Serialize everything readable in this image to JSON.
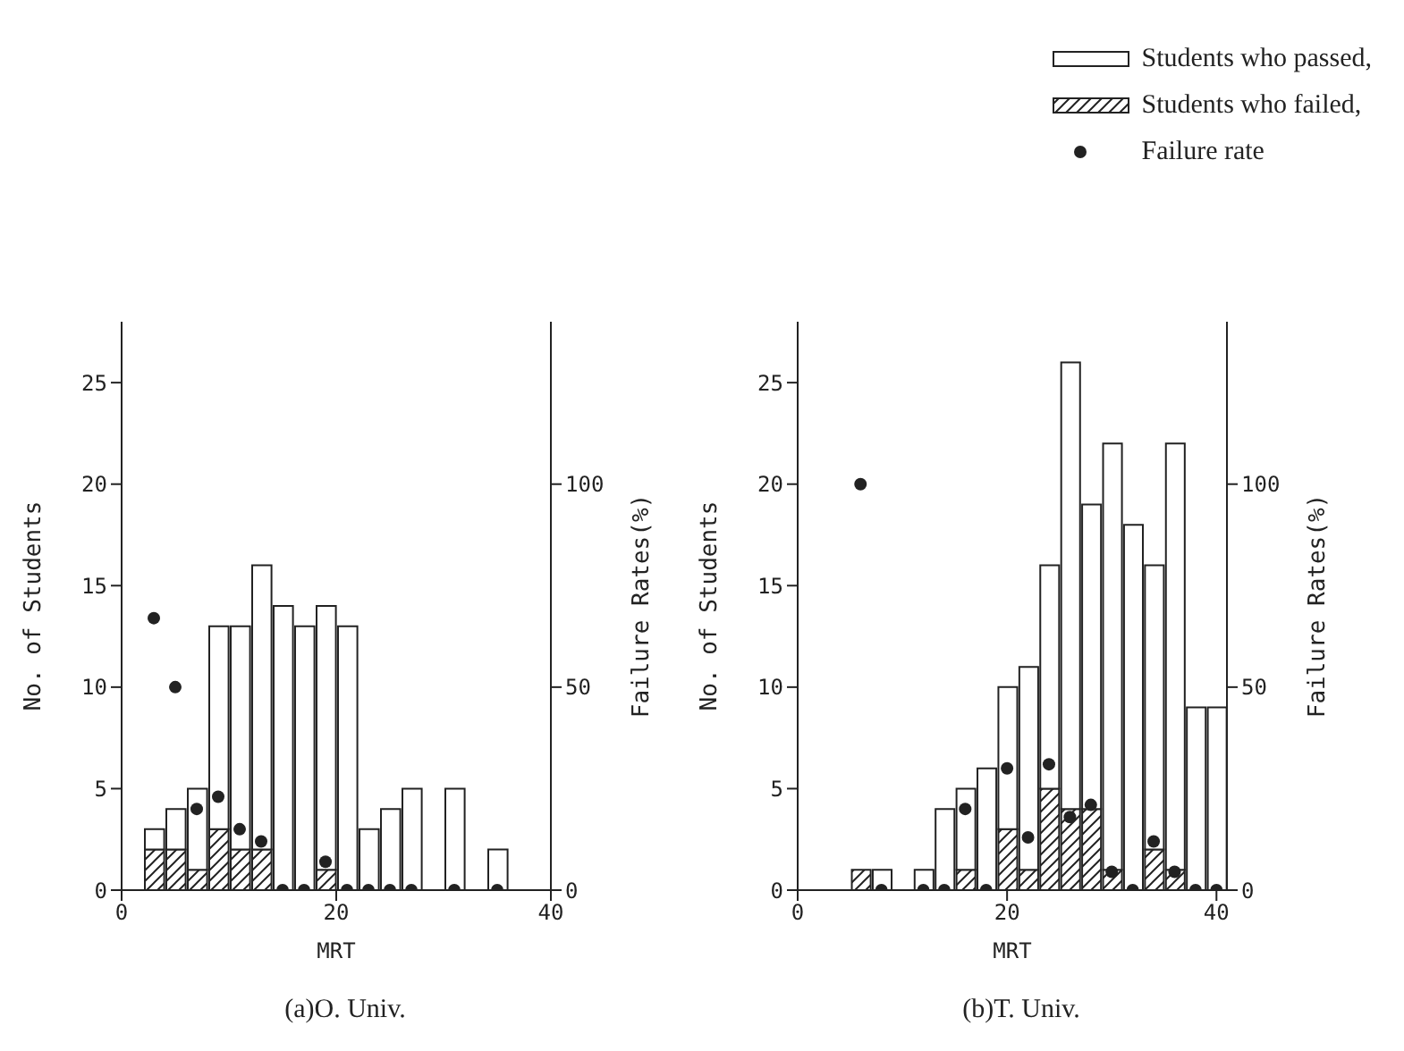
{
  "chart_data": [
    {
      "type": "bar",
      "title": "(a)O. Univ.",
      "xlabel": "MRT",
      "ylabel": "No. of Students",
      "y2label": "Failure Rates(%)",
      "stacked": true,
      "legend": "top right",
      "x": [
        3,
        5,
        7,
        9,
        11,
        13,
        15,
        17,
        19,
        21,
        23,
        25,
        27,
        29,
        31,
        33,
        35
      ],
      "series": [
        {
          "name": "Students who failed,",
          "color": "#222222",
          "values": [
            2,
            2,
            1,
            3,
            2,
            2,
            0,
            0,
            1,
            0,
            0,
            0,
            0,
            0,
            0,
            0,
            0
          ]
        },
        {
          "name": "Students who passed,",
          "color": "#ffffff",
          "values": [
            1,
            2,
            4,
            10,
            11,
            14,
            14,
            13,
            13,
            13,
            3,
            4,
            5,
            0,
            5,
            0,
            2
          ]
        },
        {
          "name": "Failure rate",
          "type": "scatter",
          "axis": "y2",
          "color": "#222222",
          "x": [
            3,
            5,
            7,
            9,
            11,
            13,
            15,
            17,
            19,
            21,
            23,
            25,
            27,
            31,
            35
          ],
          "values": [
            67,
            50,
            20,
            23,
            15,
            12,
            0,
            0,
            7,
            0,
            0,
            0,
            0,
            0,
            0
          ]
        }
      ],
      "xlim": [
        0,
        40
      ],
      "xticks": [
        0,
        20,
        40
      ],
      "ylim": [
        0,
        28
      ],
      "yticks": [
        0,
        5,
        10,
        15,
        20,
        25
      ],
      "y2lim": [
        0,
        140
      ],
      "y2ticks": [
        0,
        50,
        100
      ]
    },
    {
      "type": "bar",
      "title": "(b)T. Univ.",
      "xlabel": "MRT",
      "ylabel": "No. of Students",
      "y2label": "Failure Rates(%)",
      "stacked": true,
      "legend": "top right",
      "x": [
        6,
        8,
        10,
        12,
        14,
        16,
        18,
        20,
        22,
        24,
        26,
        28,
        30,
        32,
        34,
        36,
        38,
        40
      ],
      "series": [
        {
          "name": "Students who failed,",
          "color": "#222222",
          "values": [
            1,
            0,
            0,
            0,
            0,
            1,
            0,
            3,
            1,
            5,
            4,
            4,
            1,
            0,
            2,
            1,
            0,
            0
          ]
        },
        {
          "name": "Students who passed,",
          "color": "#ffffff",
          "values": [
            0,
            1,
            0,
            1,
            4,
            4,
            6,
            7,
            10,
            11,
            22,
            15,
            21,
            18,
            14,
            21,
            9,
            9
          ]
        },
        {
          "name": "Failure rate",
          "type": "scatter",
          "axis": "y2",
          "color": "#222222",
          "x": [
            6,
            8,
            12,
            14,
            16,
            18,
            20,
            22,
            24,
            26,
            28,
            30,
            32,
            34,
            36,
            38,
            40
          ],
          "values": [
            100,
            0,
            0,
            0,
            20,
            0,
            30,
            13,
            31,
            18,
            21,
            4.5,
            0,
            12,
            4.5,
            0,
            0
          ]
        }
      ],
      "xlim": [
        0,
        41
      ],
      "xticks": [
        0,
        20,
        40
      ],
      "ylim": [
        0,
        28
      ],
      "yticks": [
        0,
        5,
        10,
        15,
        20,
        25
      ],
      "y2lim": [
        0,
        140
      ],
      "y2ticks": [
        0,
        50,
        100
      ]
    }
  ]
}
